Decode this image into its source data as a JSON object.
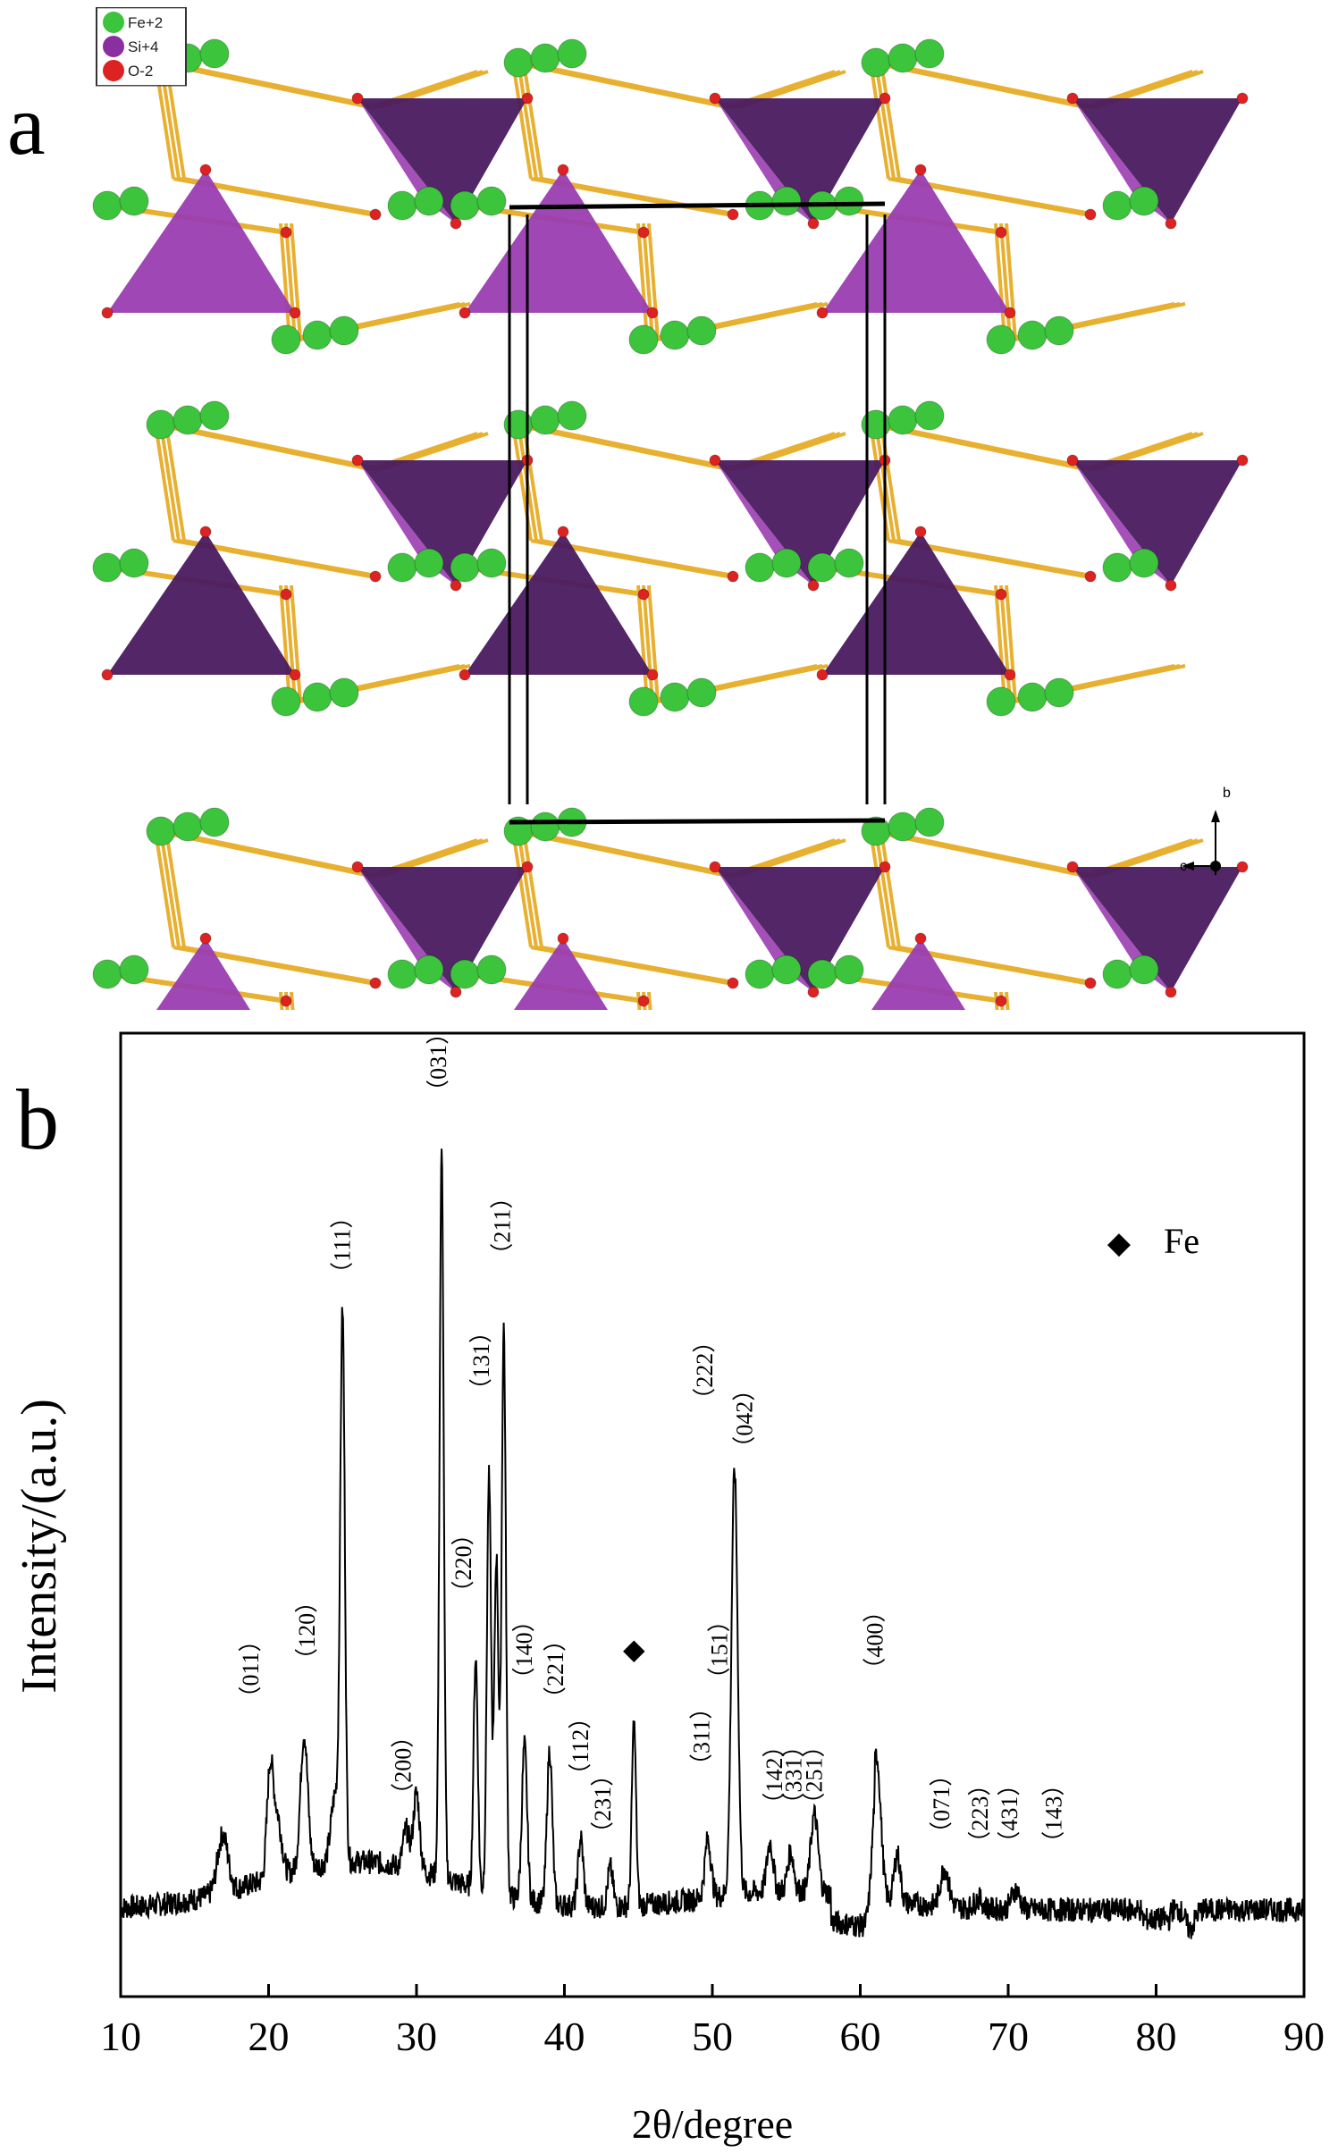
{
  "panel_a": {
    "letter": "a",
    "legend": [
      {
        "label": "Fe+2",
        "color": "#3cc43c"
      },
      {
        "label": "Si+4",
        "color": "#8a2fa0"
      },
      {
        "label": "O-2",
        "color": "#dd2222"
      }
    ],
    "axes": {
      "b": "b",
      "c": "c"
    },
    "colors": {
      "bond": "#e8b030",
      "tetra_light": "#9a3db0",
      "tetra_dark": "#4a1a60",
      "atom_o": "#dd2222",
      "atom_fe": "#3cc43c"
    }
  },
  "panel_b": {
    "letter": "b",
    "marker_legend": {
      "symbol": "◆",
      "label": "Fe"
    }
  },
  "chart_data": {
    "type": "line",
    "xlabel": "2θ/degree",
    "ylabel": "Intensity/(a.u.)",
    "xlim": [
      10,
      90
    ],
    "x_ticks": [
      10,
      20,
      30,
      40,
      50,
      60,
      70,
      80,
      90
    ],
    "baseline": 0.09,
    "peaks": [
      {
        "x": 16.9,
        "y": 0.15,
        "w": 0.5
      },
      {
        "x": 20.1,
        "y": 0.2,
        "w": 0.3
      },
      {
        "x": 20.6,
        "y": 0.15,
        "w": 0.4
      },
      {
        "x": 22.4,
        "y": 0.23,
        "w": 0.35
      },
      {
        "x": 24.5,
        "y": 0.16,
        "w": 0.4
      },
      {
        "x": 25.0,
        "y": 0.65,
        "w": 0.22
      },
      {
        "x": 29.3,
        "y": 0.13,
        "w": 0.3
      },
      {
        "x": 30.0,
        "y": 0.17,
        "w": 0.3
      },
      {
        "x": 31.7,
        "y": 0.84,
        "w": 0.2
      },
      {
        "x": 34.0,
        "y": 0.33,
        "w": 0.2
      },
      {
        "x": 34.9,
        "y": 0.52,
        "w": 0.2
      },
      {
        "x": 35.4,
        "y": 0.44,
        "w": 0.2
      },
      {
        "x": 35.9,
        "y": 0.68,
        "w": 0.2
      },
      {
        "x": 37.3,
        "y": 0.25,
        "w": 0.25
      },
      {
        "x": 39.0,
        "y": 0.25,
        "w": 0.25
      },
      {
        "x": 41.1,
        "y": 0.16,
        "w": 0.25
      },
      {
        "x": 43.1,
        "y": 0.13,
        "w": 0.25
      },
      {
        "x": 44.7,
        "y": 0.28,
        "w": 0.2
      },
      {
        "x": 49.7,
        "y": 0.15,
        "w": 0.3
      },
      {
        "x": 51.5,
        "y": 0.53,
        "w": 0.3
      },
      {
        "x": 53.9,
        "y": 0.14,
        "w": 0.3
      },
      {
        "x": 55.3,
        "y": 0.13,
        "w": 0.3
      },
      {
        "x": 56.9,
        "y": 0.17,
        "w": 0.35
      },
      {
        "x": 61.1,
        "y": 0.24,
        "w": 0.4
      },
      {
        "x": 62.5,
        "y": 0.14,
        "w": 0.3
      },
      {
        "x": 65.7,
        "y": 0.13,
        "w": 0.4
      },
      {
        "x": 68.0,
        "y": 0.1,
        "w": 0.4
      },
      {
        "x": 70.5,
        "y": 0.11,
        "w": 0.4
      },
      {
        "x": 73.9,
        "y": 0.09,
        "w": 0.4
      },
      {
        "x": 82.3,
        "y": 0.07,
        "w": 0.4
      }
    ],
    "labels": [
      {
        "text": "（011）",
        "x": 19.3,
        "y": 0.34
      },
      {
        "text": "（120）",
        "x": 23.1,
        "y": 0.38
      },
      {
        "text": "（111）",
        "x": 25.5,
        "y": 0.78
      },
      {
        "text": "（200）",
        "x": 29.6,
        "y": 0.24
      },
      {
        "text": "（031）",
        "x": 32.0,
        "y": 0.97
      },
      {
        "text": "（220）",
        "x": 33.7,
        "y": 0.45
      },
      {
        "text": "（131）",
        "x": 34.9,
        "y": 0.66
      },
      {
        "text": "（211）",
        "x": 36.3,
        "y": 0.8
      },
      {
        "text": "（140）",
        "x": 37.8,
        "y": 0.36
      },
      {
        "text": "（221）",
        "x": 39.9,
        "y": 0.34
      },
      {
        "text": "（112）",
        "x": 41.6,
        "y": 0.26
      },
      {
        "text": "（231）",
        "x": 43.1,
        "y": 0.2
      },
      {
        "text": "（311）",
        "x": 49.8,
        "y": 0.27
      },
      {
        "text": "（151）",
        "x": 51.0,
        "y": 0.36
      },
      {
        "text": "（222）",
        "x": 50.0,
        "y": 0.65
      },
      {
        "text": "（042）",
        "x": 52.7,
        "y": 0.6
      },
      {
        "text": "（142）",
        "x": 54.7,
        "y": 0.23
      },
      {
        "text": "（331）",
        "x": 56.0,
        "y": 0.23
      },
      {
        "text": "（251）",
        "x": 57.4,
        "y": 0.23
      },
      {
        "text": "（400）",
        "x": 61.5,
        "y": 0.37
      },
      {
        "text": "（071）",
        "x": 66.0,
        "y": 0.2
      },
      {
        "text": "（223）",
        "x": 68.6,
        "y": 0.19
      },
      {
        "text": "（431）",
        "x": 70.6,
        "y": 0.19
      },
      {
        "text": "（143）",
        "x": 73.6,
        "y": 0.19
      }
    ],
    "markers": [
      {
        "symbol": "◆",
        "x": 44.7,
        "y": 0.36
      }
    ]
  }
}
